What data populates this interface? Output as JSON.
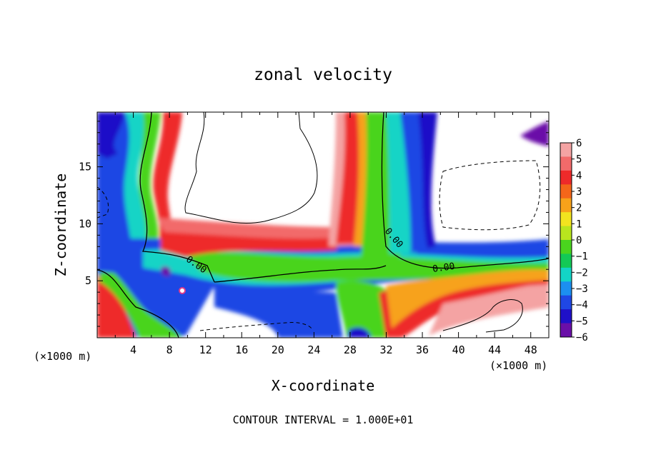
{
  "chart_data": {
    "type": "heatmap",
    "title": "zonal velocity",
    "xlabel": "X-coordinate",
    "ylabel": "Z-coordinate",
    "x_unit_left": "(×1000 m)",
    "x_unit_right": "(×1000 m)",
    "footer": "CONTOUR INTERVAL = 1.000E+01",
    "xlim": [
      0,
      50
    ],
    "ylim": [
      0,
      19.8
    ],
    "x_ticks": [
      4,
      8,
      12,
      16,
      20,
      24,
      28,
      32,
      36,
      40,
      44,
      48
    ],
    "y_ticks": [
      5,
      10,
      15
    ],
    "colorbar": {
      "levels": [
        "6",
        "5",
        "4",
        "3",
        "2",
        "1",
        "0",
        "-1",
        "-2",
        "-3",
        "-4",
        "-5",
        "-6"
      ],
      "range": [
        -6,
        6
      ],
      "colors": [
        "#f4a3a3",
        "#f26a6a",
        "#ee2a2a",
        "#f4661a",
        "#f7a21a",
        "#f2e41f",
        "#b9e61e",
        "#4ad41e",
        "#13c956",
        "#13d4c6",
        "#1c8ff0",
        "#1f47e4",
        "#1f10c8",
        "#6a0fa8"
      ]
    },
    "contour_labels": [
      {
        "text": "0.00",
        "x": 10.8,
        "y": 6.2,
        "angle": 35
      },
      {
        "text": "0.00",
        "x": 32.6,
        "y": 8.6,
        "angle": 50
      },
      {
        "text": "0.00",
        "x": 38.4,
        "y": 5.9,
        "angle": -8
      }
    ]
  }
}
